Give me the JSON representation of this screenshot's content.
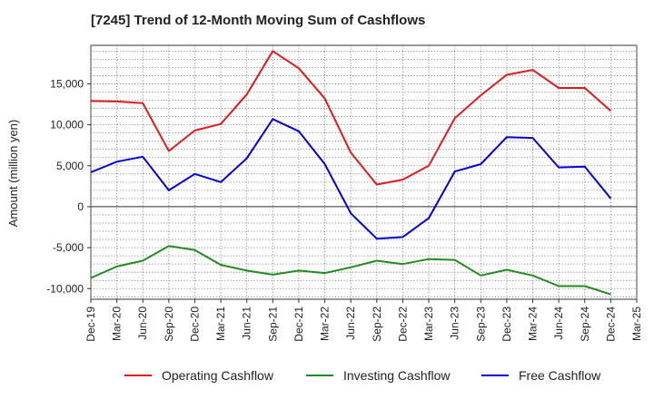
{
  "chart_data": {
    "type": "line",
    "title": "[7245]  Trend of 12-Month Moving Sum of Cashflows",
    "xlabel": "",
    "ylabel": "Amount (million yen)",
    "ylim": [
      -11300,
      19700
    ],
    "yticks": [
      -10000,
      -5000,
      0,
      5000,
      10000,
      15000
    ],
    "ytick_labels": [
      "-10,000",
      "-5,000",
      "0",
      "5,000",
      "10,000",
      "15,000"
    ],
    "x_tick_labels": [
      "Dec-19",
      "Mar-20",
      "Jun-20",
      "Sep-20",
      "Dec-20",
      "Mar-21",
      "Jun-21",
      "Sep-21",
      "Dec-21",
      "Mar-22",
      "Jun-22",
      "Sep-22",
      "Dec-22",
      "Mar-23",
      "Jun-23",
      "Sep-23",
      "Dec-23",
      "Mar-24",
      "Jun-24",
      "Sep-24",
      "Dec-24",
      "Mar-25"
    ],
    "x": [
      "Dec-19",
      "Mar-20",
      "Jun-20",
      "Sep-20",
      "Dec-20",
      "Mar-21",
      "Jun-21",
      "Sep-21",
      "Dec-21",
      "Mar-22",
      "Jun-22",
      "Sep-22",
      "Dec-22",
      "Mar-23",
      "Jun-23",
      "Sep-23",
      "Dec-23",
      "Mar-24",
      "Jun-24",
      "Sep-24",
      "Dec-24"
    ],
    "grid": true,
    "legend_position": "bottom",
    "series": [
      {
        "name": "Operating Cashflow",
        "color": "#e31a1c",
        "values": [
          12900,
          12850,
          12650,
          6800,
          9300,
          10100,
          13700,
          19000,
          16900,
          13200,
          6600,
          2700,
          3300,
          5000,
          10800,
          13600,
          16100,
          16700,
          14500,
          14500,
          11700
        ]
      },
      {
        "name": "Investing Cashflow",
        "color": "#238b22",
        "values": [
          -8700,
          -7300,
          -6600,
          -4800,
          -5300,
          -7100,
          -7800,
          -8300,
          -7800,
          -8100,
          -7400,
          -6600,
          -7000,
          -6400,
          -6500,
          -8400,
          -7700,
          -8400,
          -9700,
          -9700,
          -10700
        ]
      },
      {
        "name": "Free Cashflow",
        "color": "#0000dd",
        "values": [
          4200,
          5500,
          6100,
          2000,
          4000,
          3000,
          5900,
          10700,
          9200,
          5200,
          -800,
          -3900,
          -3700,
          -1400,
          4300,
          5200,
          8500,
          8400,
          4800,
          4900,
          1000
        ]
      }
    ]
  }
}
